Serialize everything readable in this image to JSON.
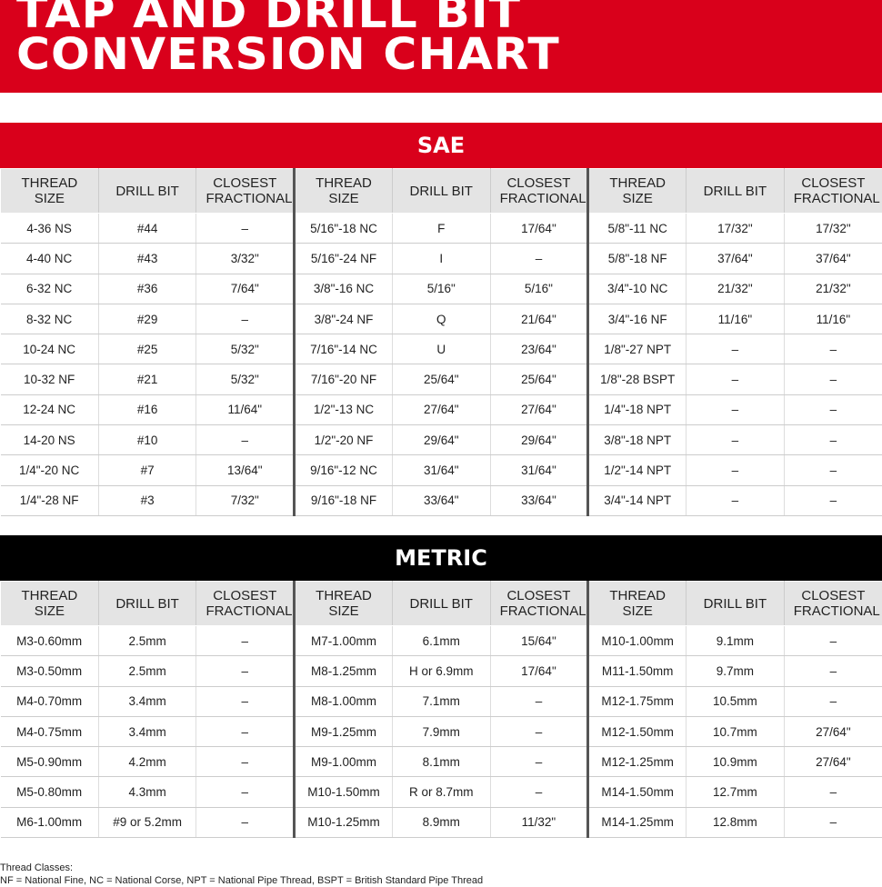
{
  "title": {
    "line1": "TAP AND DRILL BIT",
    "line2": "CONVERSION CHART"
  },
  "headers": [
    "THREAD SIZE",
    "DRILL BIT",
    "CLOSEST FRACTIONAL",
    "THREAD SIZE",
    "DRILL BIT",
    "CLOSEST FRACTIONAL",
    "THREAD SIZE",
    "DRILL BIT",
    "CLOSEST FRACTIONAL"
  ],
  "sae": {
    "label": "SAE",
    "rows": [
      [
        "4-36 NS",
        "#44",
        "–",
        "5/16\"-18 NC",
        "F",
        "17/64\"",
        "5/8\"-11 NC",
        "17/32\"",
        "17/32\""
      ],
      [
        "4-40 NC",
        "#43",
        "3/32\"",
        "5/16\"-24 NF",
        "I",
        "–",
        "5/8\"-18 NF",
        "37/64\"",
        "37/64\""
      ],
      [
        "6-32 NC",
        "#36",
        "7/64\"",
        "3/8\"-16 NC",
        "5/16\"",
        "5/16\"",
        "3/4\"-10 NC",
        "21/32\"",
        "21/32\""
      ],
      [
        "8-32 NC",
        "#29",
        "–",
        "3/8\"-24 NF",
        "Q",
        "21/64\"",
        "3/4\"-16 NF",
        "11/16\"",
        "11/16\""
      ],
      [
        "10-24 NC",
        "#25",
        "5/32\"",
        "7/16\"-14 NC",
        "U",
        "23/64\"",
        "1/8\"-27 NPT",
        "–",
        "–"
      ],
      [
        "10-32 NF",
        "#21",
        "5/32\"",
        "7/16\"-20 NF",
        "25/64\"",
        "25/64\"",
        "1/8\"-28 BSPT",
        "–",
        "–"
      ],
      [
        "12-24 NC",
        "#16",
        "11/64\"",
        "1/2\"-13 NC",
        "27/64\"",
        "27/64\"",
        "1/4\"-18 NPT",
        "–",
        "–"
      ],
      [
        "14-20 NS",
        "#10",
        "–",
        "1/2\"-20 NF",
        "29/64\"",
        "29/64\"",
        "3/8\"-18 NPT",
        "–",
        "–"
      ],
      [
        "1/4\"-20 NC",
        "#7",
        "13/64\"",
        "9/16\"-12 NC",
        "31/64\"",
        "31/64\"",
        "1/2\"-14 NPT",
        "–",
        "–"
      ],
      [
        "1/4\"-28 NF",
        "#3",
        "7/32\"",
        "9/16\"-18 NF",
        "33/64\"",
        "33/64\"",
        "3/4\"-14 NPT",
        "–",
        "–"
      ]
    ]
  },
  "metric": {
    "label": "METRIC",
    "rows": [
      [
        "M3-0.60mm",
        "2.5mm",
        "–",
        "M7-1.00mm",
        "6.1mm",
        "15/64\"",
        "M10-1.00mm",
        "9.1mm",
        "–"
      ],
      [
        "M3-0.50mm",
        "2.5mm",
        "–",
        "M8-1.25mm",
        "H or 6.9mm",
        "17/64\"",
        "M11-1.50mm",
        "9.7mm",
        "–"
      ],
      [
        "M4-0.70mm",
        "3.4mm",
        "–",
        "M8-1.00mm",
        "7.1mm",
        "–",
        "M12-1.75mm",
        "10.5mm",
        "–"
      ],
      [
        "M4-0.75mm",
        "3.4mm",
        "–",
        "M9-1.25mm",
        "7.9mm",
        "–",
        "M12-1.50mm",
        "10.7mm",
        "27/64\""
      ],
      [
        "M5-0.90mm",
        "4.2mm",
        "–",
        "M9-1.00mm",
        "8.1mm",
        "–",
        "M12-1.25mm",
        "10.9mm",
        "27/64\""
      ],
      [
        "M5-0.80mm",
        "4.3mm",
        "–",
        "M10-1.50mm",
        "R or 8.7mm",
        "–",
        "M14-1.50mm",
        "12.7mm",
        "–"
      ],
      [
        "M6-1.00mm",
        "#9 or 5.2mm",
        "–",
        "M10-1.25mm",
        "8.9mm",
        "11/32\"",
        "M14-1.25mm",
        "12.8mm",
        "–"
      ]
    ]
  },
  "footnote": {
    "heading": "Thread Classes:",
    "text": "NF = National Fine, NC = National Corse, NPT = National Pipe Thread, BSPT = British Standard Pipe Thread"
  },
  "colors": {
    "brand_red": "#d9001b",
    "metric_bar": "#000000"
  }
}
